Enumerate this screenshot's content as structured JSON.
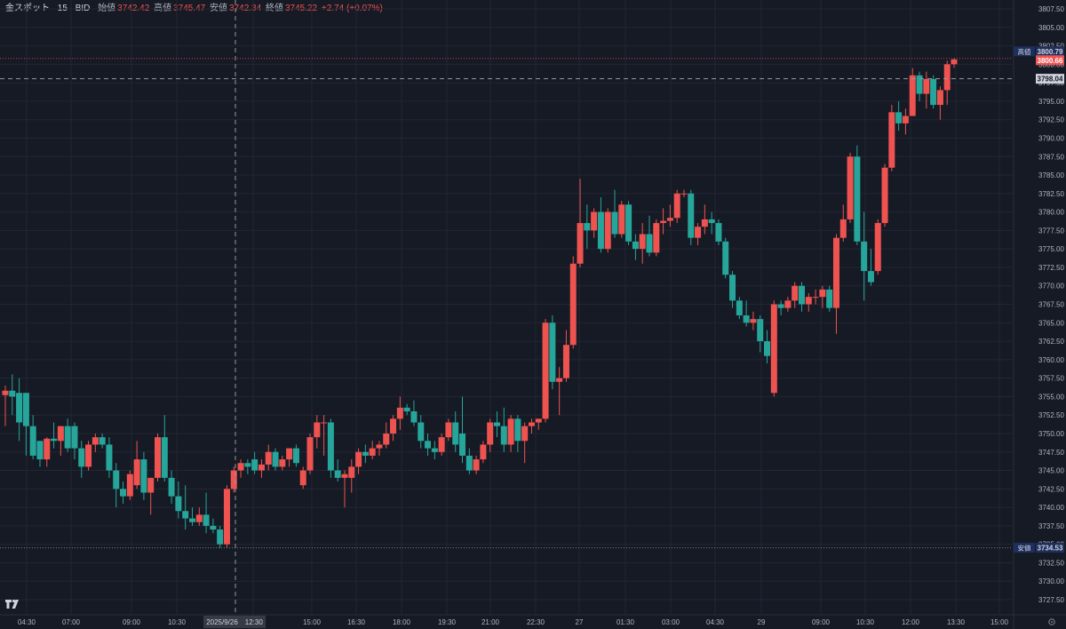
{
  "header": {
    "symbol": "金スポット",
    "interval": "15",
    "price_source": "BID",
    "open_label": "始値",
    "open_value": "3742.42",
    "high_label": "高値",
    "high_value": "3745.47",
    "low_label": "安値",
    "low_value": "3742.34",
    "close_label": "終値",
    "close_value": "3745.22",
    "change": "+2.74 (+0.07%)"
  },
  "colors": {
    "background": "#161a25",
    "up": "#ef5350",
    "down": "#26a69a",
    "grid": "#232634",
    "text": "#b2b5be"
  },
  "price_axis": {
    "ticks": [
      "3807.50",
      "3805.00",
      "3802.50",
      "3800.00",
      "3797.50",
      "3795.00",
      "3792.50",
      "3790.00",
      "3787.50",
      "3785.00",
      "3782.50",
      "3780.00",
      "3777.50",
      "3775.00",
      "3772.50",
      "3770.00",
      "3767.50",
      "3765.00",
      "3762.50",
      "3760.00",
      "3757.50",
      "3755.00",
      "3752.50",
      "3750.00",
      "3747.50",
      "3745.00",
      "3742.50",
      "3740.00",
      "3737.50",
      "3735.00",
      "3732.50",
      "3730.00",
      "3727.50"
    ],
    "high_tag": {
      "label": "高値",
      "value": "3800.79"
    },
    "last_tag": {
      "value": "3800.66"
    },
    "crosshair_tag": {
      "value": "3798.04"
    },
    "low_tag": {
      "label": "安値",
      "value": "3734.53"
    }
  },
  "time_axis": {
    "labels": [
      "04:30",
      "07:00",
      "09:00",
      "10:30",
      "12:30",
      "15:00",
      "16:30",
      "18:00",
      "19:30",
      "21:00",
      "22:30",
      "27",
      "01:30",
      "03:00",
      "04:30",
      "29",
      "09:00",
      "10:30",
      "12:00",
      "13:30",
      "15:00"
    ],
    "crosshair_label": "2025/9/26　12:30"
  },
  "chart_data": {
    "type": "candlestick",
    "ylim": [
      3726,
      3809
    ],
    "candles": [
      {
        "o": 3755.2,
        "h": 3756.5,
        "l": 3751.0,
        "c": 3755.8
      },
      {
        "o": 3755.8,
        "h": 3758.0,
        "l": 3752.5,
        "c": 3755.0
      },
      {
        "o": 3755.5,
        "h": 3757.5,
        "l": 3749.0,
        "c": 3751.5
      },
      {
        "o": 3755.5,
        "h": 3755.5,
        "l": 3747.0,
        "c": 3751.0
      },
      {
        "o": 3751.0,
        "h": 3752.5,
        "l": 3746.5,
        "c": 3747.0
      },
      {
        "o": 3749.0,
        "h": 3749.0,
        "l": 3745.5,
        "c": 3746.5
      },
      {
        "o": 3746.5,
        "h": 3749.5,
        "l": 3745.5,
        "c": 3749.3
      },
      {
        "o": 3749.3,
        "h": 3751.5,
        "l": 3748.0,
        "c": 3749.0
      },
      {
        "o": 3749.0,
        "h": 3751.0,
        "l": 3747.0,
        "c": 3751.0
      },
      {
        "o": 3751.0,
        "h": 3752.0,
        "l": 3747.5,
        "c": 3748.0
      },
      {
        "o": 3751.0,
        "h": 3751.5,
        "l": 3746.5,
        "c": 3748.0
      },
      {
        "o": 3748.0,
        "h": 3749.0,
        "l": 3744.0,
        "c": 3745.5
      },
      {
        "o": 3745.5,
        "h": 3749.0,
        "l": 3745.0,
        "c": 3748.5
      },
      {
        "o": 3748.5,
        "h": 3750.0,
        "l": 3747.5,
        "c": 3749.5
      },
      {
        "o": 3749.5,
        "h": 3750.0,
        "l": 3748.0,
        "c": 3748.5
      },
      {
        "o": 3748.5,
        "h": 3749.5,
        "l": 3744.0,
        "c": 3745.0
      },
      {
        "o": 3745.0,
        "h": 3746.0,
        "l": 3740.0,
        "c": 3742.5
      },
      {
        "o": 3742.5,
        "h": 3743.5,
        "l": 3740.5,
        "c": 3741.5
      },
      {
        "o": 3741.5,
        "h": 3745.0,
        "l": 3741.0,
        "c": 3744.5
      },
      {
        "o": 3743.0,
        "h": 3749.0,
        "l": 3742.5,
        "c": 3746.5
      },
      {
        "o": 3746.5,
        "h": 3747.5,
        "l": 3741.0,
        "c": 3742.0
      },
      {
        "o": 3742.0,
        "h": 3744.0,
        "l": 3739.0,
        "c": 3744.0
      },
      {
        "o": 3744.0,
        "h": 3750.0,
        "l": 3743.5,
        "c": 3749.5
      },
      {
        "o": 3749.5,
        "h": 3752.5,
        "l": 3743.5,
        "c": 3744.0
      },
      {
        "o": 3744.0,
        "h": 3745.0,
        "l": 3740.5,
        "c": 3741.5
      },
      {
        "o": 3741.5,
        "h": 3743.5,
        "l": 3738.5,
        "c": 3739.5
      },
      {
        "o": 3739.5,
        "h": 3743.0,
        "l": 3737.0,
        "c": 3738.5
      },
      {
        "o": 3738.5,
        "h": 3740.0,
        "l": 3737.5,
        "c": 3738.0
      },
      {
        "o": 3738.0,
        "h": 3740.0,
        "l": 3737.5,
        "c": 3739.0
      },
      {
        "o": 3739.0,
        "h": 3742.0,
        "l": 3736.5,
        "c": 3737.5
      },
      {
        "o": 3737.5,
        "h": 3738.5,
        "l": 3736.5,
        "c": 3737.0
      },
      {
        "o": 3737.0,
        "h": 3737.5,
        "l": 3734.5,
        "c": 3735.0
      },
      {
        "o": 3735.0,
        "h": 3743.0,
        "l": 3734.5,
        "c": 3742.5
      },
      {
        "o": 3742.5,
        "h": 3745.5,
        "l": 3742.0,
        "c": 3745.0
      },
      {
        "o": 3745.0,
        "h": 3746.5,
        "l": 3744.0,
        "c": 3746.0
      },
      {
        "o": 3746.0,
        "h": 3746.5,
        "l": 3744.5,
        "c": 3745.5
      },
      {
        "o": 3746.5,
        "h": 3747.5,
        "l": 3744.5,
        "c": 3745.0
      },
      {
        "o": 3745.0,
        "h": 3746.5,
        "l": 3744.0,
        "c": 3745.8
      },
      {
        "o": 3745.8,
        "h": 3748.5,
        "l": 3745.0,
        "c": 3747.5
      },
      {
        "o": 3747.5,
        "h": 3748.0,
        "l": 3745.0,
        "c": 3745.5
      },
      {
        "o": 3745.5,
        "h": 3747.0,
        "l": 3745.0,
        "c": 3746.5
      },
      {
        "o": 3746.5,
        "h": 3748.0,
        "l": 3745.5,
        "c": 3748.0
      },
      {
        "o": 3748.0,
        "h": 3748.5,
        "l": 3745.5,
        "c": 3746.0
      },
      {
        "o": 3743.0,
        "h": 3745.5,
        "l": 3742.5,
        "c": 3745.0
      },
      {
        "o": 3745.0,
        "h": 3750.0,
        "l": 3744.5,
        "c": 3749.5
      },
      {
        "o": 3749.5,
        "h": 3752.5,
        "l": 3748.0,
        "c": 3751.5
      },
      {
        "o": 3751.5,
        "h": 3752.5,
        "l": 3747.0,
        "c": 3751.5
      },
      {
        "o": 3751.5,
        "h": 3752.0,
        "l": 3744.0,
        "c": 3745.0
      },
      {
        "o": 3745.0,
        "h": 3746.5,
        "l": 3743.5,
        "c": 3744.0
      },
      {
        "o": 3744.0,
        "h": 3745.0,
        "l": 3740.0,
        "c": 3744.5
      },
      {
        "o": 3744.0,
        "h": 3746.5,
        "l": 3742.0,
        "c": 3745.5
      },
      {
        "o": 3745.5,
        "h": 3748.0,
        "l": 3744.5,
        "c": 3747.5
      },
      {
        "o": 3747.5,
        "h": 3748.5,
        "l": 3746.0,
        "c": 3747.0
      },
      {
        "o": 3747.0,
        "h": 3749.0,
        "l": 3746.5,
        "c": 3748.0
      },
      {
        "o": 3748.0,
        "h": 3749.0,
        "l": 3747.0,
        "c": 3748.5
      },
      {
        "o": 3748.5,
        "h": 3751.5,
        "l": 3748.0,
        "c": 3750.0
      },
      {
        "o": 3750.0,
        "h": 3752.5,
        "l": 3749.0,
        "c": 3752.0
      },
      {
        "o": 3752.0,
        "h": 3755.0,
        "l": 3750.5,
        "c": 3753.5
      },
      {
        "o": 3753.5,
        "h": 3754.0,
        "l": 3752.5,
        "c": 3753.0
      },
      {
        "o": 3753.0,
        "h": 3754.5,
        "l": 3751.0,
        "c": 3751.5
      },
      {
        "o": 3751.5,
        "h": 3752.5,
        "l": 3748.0,
        "c": 3749.0
      },
      {
        "o": 3749.0,
        "h": 3750.0,
        "l": 3747.0,
        "c": 3748.0
      },
      {
        "o": 3748.0,
        "h": 3749.0,
        "l": 3746.5,
        "c": 3747.5
      },
      {
        "o": 3747.5,
        "h": 3750.0,
        "l": 3747.0,
        "c": 3749.5
      },
      {
        "o": 3749.5,
        "h": 3752.0,
        "l": 3749.0,
        "c": 3751.5
      },
      {
        "o": 3751.5,
        "h": 3753.0,
        "l": 3747.5,
        "c": 3748.5
      },
      {
        "o": 3750.0,
        "h": 3755.0,
        "l": 3746.0,
        "c": 3747.0
      },
      {
        "o": 3747.0,
        "h": 3748.0,
        "l": 3744.5,
        "c": 3745.0
      },
      {
        "o": 3745.0,
        "h": 3747.0,
        "l": 3744.5,
        "c": 3746.5
      },
      {
        "o": 3746.5,
        "h": 3749.0,
        "l": 3746.0,
        "c": 3748.5
      },
      {
        "o": 3748.5,
        "h": 3752.0,
        "l": 3747.5,
        "c": 3751.5
      },
      {
        "o": 3751.5,
        "h": 3753.0,
        "l": 3749.5,
        "c": 3751.0
      },
      {
        "o": 3751.0,
        "h": 3753.5,
        "l": 3747.5,
        "c": 3748.5
      },
      {
        "o": 3748.5,
        "h": 3752.5,
        "l": 3747.5,
        "c": 3752.0
      },
      {
        "o": 3752.0,
        "h": 3752.5,
        "l": 3747.5,
        "c": 3749.0
      },
      {
        "o": 3749.0,
        "h": 3751.5,
        "l": 3746.0,
        "c": 3751.0
      },
      {
        "o": 3751.0,
        "h": 3752.0,
        "l": 3750.0,
        "c": 3751.5
      },
      {
        "o": 3751.5,
        "h": 3752.0,
        "l": 3750.5,
        "c": 3752.0
      },
      {
        "o": 3752.0,
        "h": 3765.5,
        "l": 3751.5,
        "c": 3765.0
      },
      {
        "o": 3765.0,
        "h": 3766.0,
        "l": 3756.0,
        "c": 3757.0
      },
      {
        "o": 3757.0,
        "h": 3759.0,
        "l": 3752.5,
        "c": 3757.5
      },
      {
        "o": 3757.5,
        "h": 3764.0,
        "l": 3757.0,
        "c": 3762.0
      },
      {
        "o": 3762.0,
        "h": 3774.0,
        "l": 3761.5,
        "c": 3773.0
      },
      {
        "o": 3773.0,
        "h": 3784.5,
        "l": 3772.5,
        "c": 3778.5
      },
      {
        "o": 3778.5,
        "h": 3781.0,
        "l": 3775.0,
        "c": 3777.5
      },
      {
        "o": 3777.5,
        "h": 3780.5,
        "l": 3776.5,
        "c": 3780.0
      },
      {
        "o": 3780.0,
        "h": 3782.0,
        "l": 3774.5,
        "c": 3775.0
      },
      {
        "o": 3775.0,
        "h": 3780.5,
        "l": 3774.5,
        "c": 3780.0
      },
      {
        "o": 3780.0,
        "h": 3783.0,
        "l": 3776.5,
        "c": 3777.0
      },
      {
        "o": 3777.0,
        "h": 3781.5,
        "l": 3776.5,
        "c": 3781.0
      },
      {
        "o": 3781.0,
        "h": 3781.5,
        "l": 3775.5,
        "c": 3776.0
      },
      {
        "o": 3776.0,
        "h": 3777.0,
        "l": 3773.5,
        "c": 3775.0
      },
      {
        "o": 3775.0,
        "h": 3778.5,
        "l": 3773.0,
        "c": 3777.0
      },
      {
        "o": 3777.0,
        "h": 3779.5,
        "l": 3774.0,
        "c": 3774.5
      },
      {
        "o": 3774.5,
        "h": 3779.0,
        "l": 3774.0,
        "c": 3778.5
      },
      {
        "o": 3778.5,
        "h": 3780.5,
        "l": 3777.0,
        "c": 3778.8
      },
      {
        "o": 3778.8,
        "h": 3781.0,
        "l": 3778.0,
        "c": 3779.2
      },
      {
        "o": 3779.2,
        "h": 3783.0,
        "l": 3778.5,
        "c": 3782.5
      },
      {
        "o": 3782.5,
        "h": 3783.0,
        "l": 3782.0,
        "c": 3782.5
      },
      {
        "o": 3782.5,
        "h": 3783.0,
        "l": 3775.5,
        "c": 3776.5
      },
      {
        "o": 3776.5,
        "h": 3778.5,
        "l": 3775.5,
        "c": 3778.0
      },
      {
        "o": 3778.0,
        "h": 3781.0,
        "l": 3777.0,
        "c": 3779.0
      },
      {
        "o": 3779.0,
        "h": 3780.0,
        "l": 3777.0,
        "c": 3778.5
      },
      {
        "o": 3778.5,
        "h": 3779.0,
        "l": 3775.5,
        "c": 3776.0
      },
      {
        "o": 3776.0,
        "h": 3776.5,
        "l": 3771.0,
        "c": 3771.5
      },
      {
        "o": 3771.5,
        "h": 3772.0,
        "l": 3767.0,
        "c": 3768.0
      },
      {
        "o": 3768.0,
        "h": 3768.5,
        "l": 3765.5,
        "c": 3766.0
      },
      {
        "o": 3766.0,
        "h": 3768.0,
        "l": 3764.5,
        "c": 3765.0
      },
      {
        "o": 3765.0,
        "h": 3766.5,
        "l": 3764.0,
        "c": 3765.5
      },
      {
        "o": 3765.5,
        "h": 3766.0,
        "l": 3761.0,
        "c": 3762.5
      },
      {
        "o": 3762.5,
        "h": 3764.0,
        "l": 3759.5,
        "c": 3760.5
      },
      {
        "o": 3755.5,
        "h": 3768.0,
        "l": 3755.0,
        "c": 3767.5
      },
      {
        "o": 3767.5,
        "h": 3768.0,
        "l": 3766.0,
        "c": 3767.0
      },
      {
        "o": 3767.0,
        "h": 3768.5,
        "l": 3766.5,
        "c": 3768.0
      },
      {
        "o": 3768.0,
        "h": 3770.5,
        "l": 3767.0,
        "c": 3770.0
      },
      {
        "o": 3770.0,
        "h": 3770.5,
        "l": 3766.5,
        "c": 3767.5
      },
      {
        "o": 3767.5,
        "h": 3769.0,
        "l": 3766.5,
        "c": 3768.5
      },
      {
        "o": 3768.5,
        "h": 3769.5,
        "l": 3767.5,
        "c": 3768.5
      },
      {
        "o": 3768.5,
        "h": 3770.0,
        "l": 3767.0,
        "c": 3769.5
      },
      {
        "o": 3769.5,
        "h": 3770.0,
        "l": 3766.5,
        "c": 3767.0
      },
      {
        "o": 3767.0,
        "h": 3777.0,
        "l": 3763.5,
        "c": 3776.5
      },
      {
        "o": 3776.5,
        "h": 3781.0,
        "l": 3776.0,
        "c": 3779.0
      },
      {
        "o": 3779.0,
        "h": 3788.0,
        "l": 3778.5,
        "c": 3787.5
      },
      {
        "o": 3787.5,
        "h": 3789.0,
        "l": 3775.5,
        "c": 3776.0
      },
      {
        "o": 3776.0,
        "h": 3780.0,
        "l": 3768.0,
        "c": 3772.0
      },
      {
        "o": 3772.0,
        "h": 3775.0,
        "l": 3770.0,
        "c": 3770.5
      },
      {
        "o": 3772.0,
        "h": 3779.0,
        "l": 3771.5,
        "c": 3778.5
      },
      {
        "o": 3778.5,
        "h": 3786.5,
        "l": 3778.0,
        "c": 3786.0
      },
      {
        "o": 3786.0,
        "h": 3794.5,
        "l": 3785.5,
        "c": 3793.5
      },
      {
        "o": 3793.5,
        "h": 3795.0,
        "l": 3791.0,
        "c": 3792.0
      },
      {
        "o": 3792.0,
        "h": 3794.0,
        "l": 3790.5,
        "c": 3793.0
      },
      {
        "o": 3793.0,
        "h": 3799.5,
        "l": 3793.0,
        "c": 3798.5
      },
      {
        "o": 3798.5,
        "h": 3799.0,
        "l": 3795.0,
        "c": 3796.0
      },
      {
        "o": 3796.0,
        "h": 3799.0,
        "l": 3794.0,
        "c": 3798.0
      },
      {
        "o": 3798.0,
        "h": 3798.5,
        "l": 3794.0,
        "c": 3794.5
      },
      {
        "o": 3794.5,
        "h": 3797.0,
        "l": 3792.5,
        "c": 3796.5
      },
      {
        "o": 3796.5,
        "h": 3800.5,
        "l": 3794.5,
        "c": 3800.0
      },
      {
        "o": 3800.0,
        "h": 3800.8,
        "l": 3799.5,
        "c": 3800.66
      }
    ]
  }
}
